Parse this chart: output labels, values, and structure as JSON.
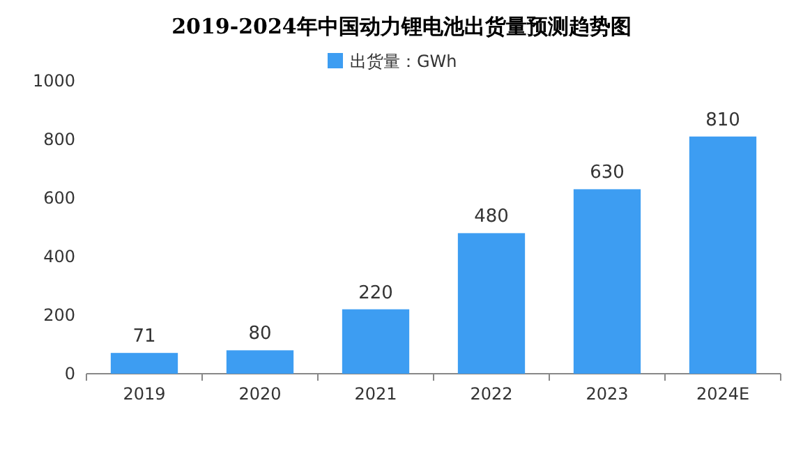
{
  "chart_data": {
    "type": "bar",
    "title": "2019-2024年中国动力锂电池出货量预测趋势图",
    "categories": [
      "2019",
      "2020",
      "2021",
      "2022",
      "2023",
      "2024E"
    ],
    "series": [
      {
        "name": "出货量：GWh",
        "color": "#3d9df2",
        "values": [
          71,
          80,
          220,
          480,
          630,
          810
        ]
      }
    ],
    "ylim": [
      0,
      1000
    ],
    "yticks": [
      0,
      200,
      400,
      600,
      800,
      1000
    ],
    "grid": false,
    "legend": "top",
    "data_labels": true
  }
}
